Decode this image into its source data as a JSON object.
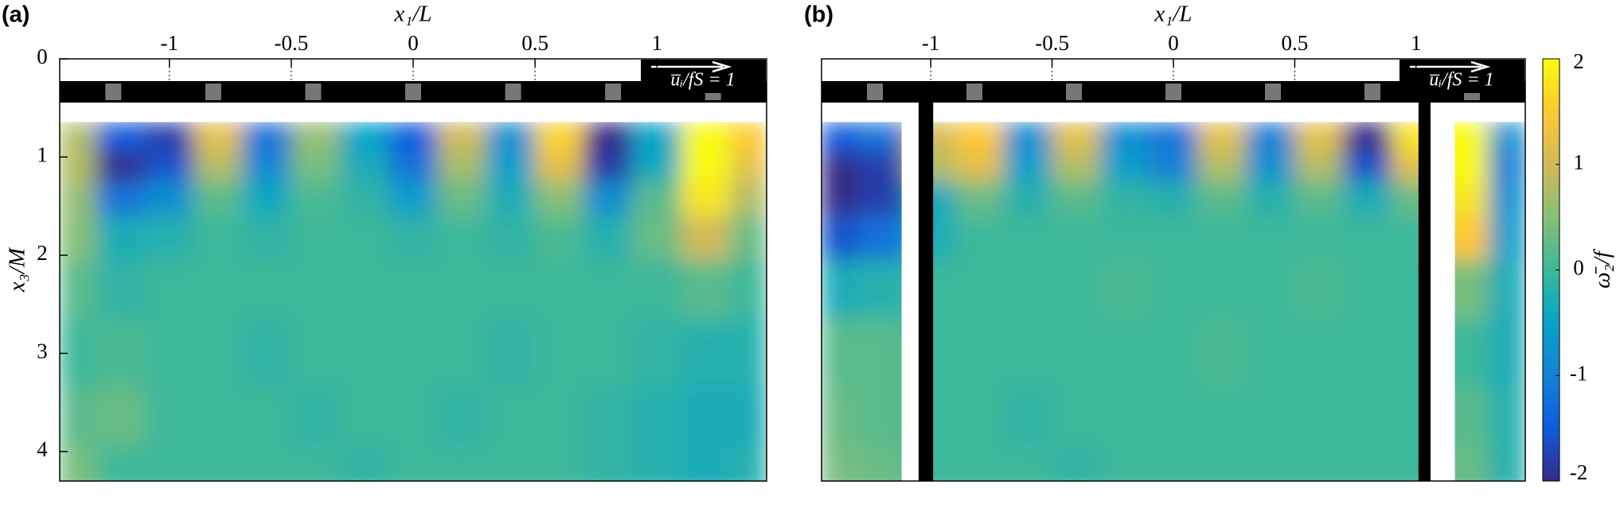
{
  "chart_data": [
    {
      "type": "heatmap",
      "title": "(a)",
      "xlabel": "x₁/L",
      "ylabel": "x₃/M",
      "annotation": "u̅ᵢ/fS = 1",
      "xlim": [
        -1.45,
        1.45
      ],
      "ylim": [
        0,
        4.3
      ],
      "xticks": [
        -1,
        -0.5,
        0,
        0.5,
        1
      ],
      "yticks": [
        0,
        1,
        2,
        3,
        4
      ],
      "x": [
        -1.4,
        -1.2,
        -1.0,
        -0.8,
        -0.6,
        -0.4,
        -0.2,
        0,
        0.2,
        0.4,
        0.6,
        0.8,
        1.0,
        1.2,
        1.4
      ],
      "y": [
        0.8,
        1.1,
        1.4,
        1.8,
        2.3,
        3.0,
        3.7,
        4.2
      ],
      "values": [
        [
          0.8,
          -1.5,
          -1.8,
          1.2,
          -1.2,
          0.6,
          -0.5,
          -1.5,
          1,
          -0.8,
          1.6,
          -2,
          -0.5,
          2,
          1.5
        ],
        [
          0.8,
          -2,
          -1.6,
          0.8,
          -0.9,
          0.4,
          -0.3,
          -1.2,
          0.7,
          -0.6,
          1.2,
          -1.8,
          -0.4,
          2,
          1.2
        ],
        [
          0.6,
          -1.2,
          -0.8,
          0.2,
          -0.4,
          0.1,
          -0.1,
          -0.6,
          0.3,
          -0.3,
          0.5,
          -0.8,
          0.2,
          1.8,
          0.8
        ],
        [
          0.5,
          -0.3,
          -0.2,
          0,
          -0.1,
          0,
          0,
          -0.1,
          0,
          -0.1,
          0.1,
          -0.2,
          0.3,
          1,
          0.3
        ],
        [
          0.2,
          -0.1,
          0,
          0,
          0,
          0,
          0,
          0,
          0,
          0,
          0,
          0,
          0,
          0.2,
          0
        ],
        [
          0,
          0.1,
          0,
          0,
          -0.1,
          0,
          0,
          0,
          0,
          -0.1,
          0,
          0,
          -0.1,
          -0.2,
          -0.2
        ],
        [
          0.2,
          0.3,
          0,
          0,
          0,
          -0.1,
          0,
          0,
          -0.1,
          0,
          0,
          -0.1,
          -0.2,
          -0.3,
          -0.3
        ],
        [
          0.4,
          0,
          0,
          0,
          0,
          0,
          -0.1,
          0,
          0,
          0,
          0,
          -0.1,
          -0.2,
          -0.3,
          -0.2
        ]
      ]
    },
    {
      "type": "heatmap",
      "title": "(b)",
      "xlabel": "x₁/L",
      "annotation": "u̅ᵢ/fS = 1",
      "xlim": [
        -1.45,
        1.45
      ],
      "ylim": [
        0,
        4.3
      ],
      "xticks": [
        -1,
        -0.5,
        0,
        0.5,
        1
      ],
      "x": [
        -1.4,
        -1.2,
        -1.0,
        -0.8,
        -0.6,
        -0.4,
        -0.2,
        0,
        0.2,
        0.4,
        0.6,
        0.8,
        1.0,
        1.2,
        1.4
      ],
      "y": [
        0.8,
        1.1,
        1.4,
        1.8,
        2.3,
        3.0,
        3.7,
        4.2
      ],
      "values": [
        [
          -1.5,
          -1.2,
          1,
          1.5,
          -0.8,
          1.2,
          -0.8,
          -1.2,
          1.2,
          -1,
          1.2,
          -2,
          1.8,
          2,
          -0.8
        ],
        [
          -2,
          -1.8,
          0.8,
          1.2,
          -0.6,
          0.8,
          -0.6,
          -1,
          0.8,
          -0.8,
          0.8,
          -1.6,
          1.2,
          2,
          -1
        ],
        [
          -2,
          -1.8,
          -0.4,
          0.3,
          -0.2,
          0.2,
          -0.1,
          -0.2,
          0.2,
          -0.2,
          0.2,
          -0.3,
          0.3,
          1.8,
          -0.8
        ],
        [
          -1.6,
          -1.2,
          -0.3,
          0,
          0,
          0,
          0,
          0,
          0,
          0,
          0,
          0,
          0,
          1.5,
          -0.6
        ],
        [
          -0.3,
          -0.2,
          0,
          0,
          0,
          0,
          0.1,
          0,
          0,
          0,
          0.1,
          0,
          0,
          0.4,
          -0.3
        ],
        [
          0.2,
          0.2,
          0,
          0,
          0,
          0,
          0,
          0,
          0.1,
          0,
          0,
          0,
          0,
          0,
          -0.3
        ],
        [
          0.3,
          0.2,
          0,
          0,
          -0.1,
          0,
          0,
          0,
          0,
          0,
          0,
          0,
          0,
          0.2,
          -0.2
        ],
        [
          0.4,
          0.3,
          0,
          0,
          0,
          -0.1,
          0,
          0,
          0,
          0,
          0,
          0,
          0,
          0.3,
          -0.2
        ]
      ],
      "colorbar": {
        "label": "ω̄₂/f",
        "lim": [
          -2,
          2
        ],
        "ticks": [
          -2,
          -1,
          0,
          1,
          2
        ],
        "colors": [
          "#352a87",
          "#0f5cdd",
          "#1481d6",
          "#06a4ca",
          "#3cb89a",
          "#87bf77",
          "#d1bb59",
          "#fec832",
          "#f9fb0e"
        ]
      }
    }
  ]
}
